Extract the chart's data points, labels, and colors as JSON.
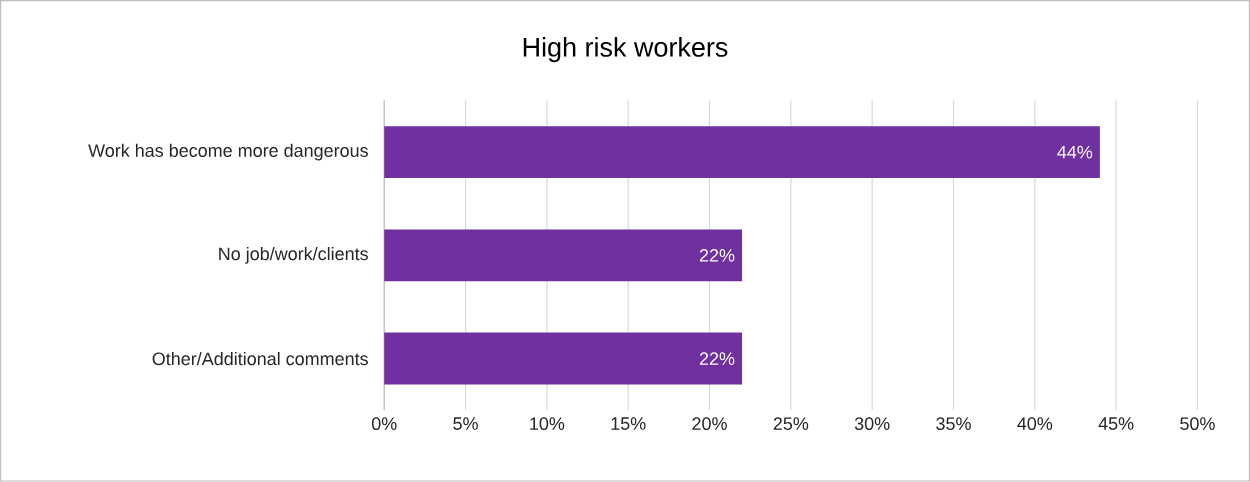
{
  "chart_data": {
    "type": "bar",
    "orientation": "horizontal",
    "title": "High risk workers",
    "categories": [
      "Work has become more dangerous",
      "No job/work/clients",
      "Other/Additional comments"
    ],
    "values": [
      44,
      22,
      22
    ],
    "color": "#7030a0",
    "value_labels": [
      "44%",
      "22%",
      "22%"
    ],
    "xlim": [
      0,
      50
    ],
    "xticks": [
      {
        "value": 0,
        "label": "0%"
      },
      {
        "value": 5,
        "label": "5%"
      },
      {
        "value": 10,
        "label": "10%"
      },
      {
        "value": 15,
        "label": "15%"
      },
      {
        "value": 20,
        "label": "20%"
      },
      {
        "value": 25,
        "label": "25%"
      },
      {
        "value": 30,
        "label": "30%"
      },
      {
        "value": 35,
        "label": "35%"
      },
      {
        "value": 40,
        "label": "40%"
      },
      {
        "value": 45,
        "label": "45%"
      },
      {
        "value": 50,
        "label": "50%"
      }
    ],
    "grid": "x"
  }
}
